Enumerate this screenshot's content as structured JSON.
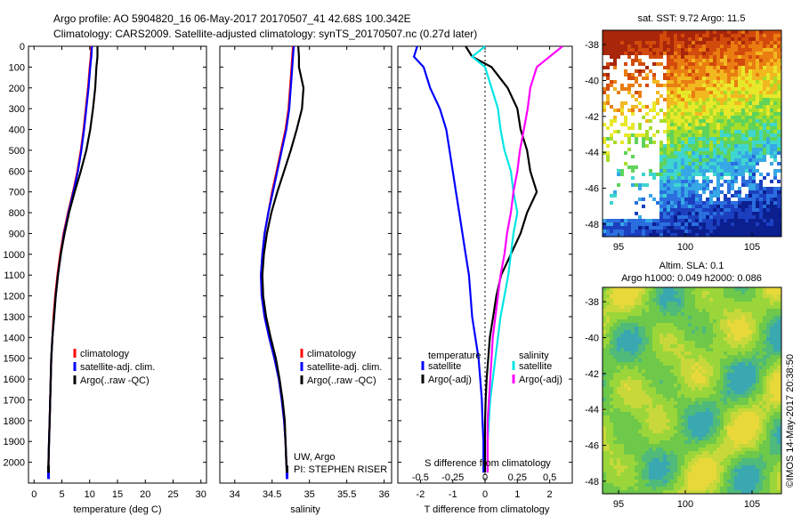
{
  "header": {
    "title_line1": "Argo profile: AO 5904820_16 06-May-2017 20170507_41 42.68S 100.342E",
    "title_line2": "Climatology: CARS2009. Satellite-adjusted climatology: synTS_20170507.nc (0.27d later)"
  },
  "side_text": "©IMOS 14-May-2017 20:38:50",
  "colors": {
    "climatology": "#ff0000",
    "satellite": "#0000ff",
    "argo": "#000000",
    "sal_satellite": "#00e5e5",
    "sal_argo": "#ff00ff"
  },
  "chart_data": [
    {
      "type": "line",
      "id": "temperature-profile",
      "xlabel": "temperature (deg C)",
      "xlim": [
        -1,
        31
      ],
      "xticks": [
        "0",
        "5",
        "10",
        "15",
        "20",
        "25",
        "30"
      ],
      "ylim": [
        2100,
        0
      ],
      "yticks": [
        "0",
        "100",
        "200",
        "300",
        "400",
        "500",
        "600",
        "700",
        "800",
        "900",
        "1000",
        "1100",
        "1200",
        "1300",
        "1400",
        "1500",
        "1600",
        "1700",
        "1800",
        "1900",
        "2000"
      ],
      "series": [
        {
          "name": "climatology",
          "color": "#ff0000",
          "x": [
            10.3,
            10.2,
            10.0,
            9.7,
            9.3,
            8.9,
            8.4,
            7.8,
            7.0,
            6.1,
            5.3,
            4.7,
            4.2,
            3.8,
            3.5,
            3.3,
            3.1,
            3.0,
            2.9,
            2.8,
            2.7,
            2.6,
            2.6,
            2.6
          ],
          "y": [
            0,
            50,
            100,
            200,
            300,
            400,
            500,
            600,
            700,
            800,
            900,
            1000,
            1100,
            1200,
            1300,
            1400,
            1500,
            1600,
            1700,
            1800,
            1900,
            2000,
            2050,
            2080
          ]
        },
        {
          "name": "satellite-adj. clim.",
          "color": "#0000ff",
          "x": [
            10.4,
            10.3,
            10.1,
            9.8,
            9.4,
            9.0,
            8.5,
            7.9,
            7.1,
            6.2,
            5.4,
            4.8,
            4.3,
            3.9,
            3.6,
            3.3,
            3.1,
            3.0,
            2.9,
            2.8,
            2.7,
            2.6,
            2.6,
            2.6
          ],
          "y": [
            0,
            50,
            100,
            200,
            300,
            400,
            500,
            600,
            700,
            800,
            900,
            1000,
            1100,
            1200,
            1300,
            1400,
            1500,
            1600,
            1700,
            1800,
            1900,
            2000,
            2050,
            2080
          ]
        },
        {
          "name": "Argo(..raw -QC)",
          "color": "#000000",
          "x": [
            11.4,
            11.4,
            11.2,
            11.0,
            10.6,
            10.1,
            9.4,
            8.4,
            7.3,
            6.3,
            5.5,
            4.8,
            4.3,
            3.9,
            3.6,
            3.3,
            3.1,
            3.0,
            2.9,
            2.8,
            2.7,
            2.6,
            2.6
          ],
          "y": [
            0,
            50,
            100,
            200,
            300,
            400,
            500,
            600,
            700,
            800,
            900,
            1000,
            1100,
            1200,
            1300,
            1400,
            1500,
            1600,
            1700,
            1800,
            1900,
            2000,
            2050
          ]
        }
      ],
      "legend": [
        "climatology",
        "satellite-adj. clim.",
        "Argo(..raw -QC)"
      ],
      "legend_position": "lower-right"
    },
    {
      "type": "line",
      "id": "salinity-profile",
      "xlabel": "salinity",
      "xlim": [
        33.8,
        36.1
      ],
      "xticks": [
        "34",
        "34.5",
        "35",
        "35.5",
        "36"
      ],
      "ylim": [
        2100,
        0
      ],
      "annotation_line1": "UW, Argo",
      "annotation_line2": "PI: STEPHEN RISER",
      "series": [
        {
          "name": "climatology",
          "color": "#ff0000",
          "x": [
            34.78,
            34.77,
            34.76,
            34.74,
            34.72,
            34.68,
            34.62,
            34.56,
            34.5,
            34.45,
            34.4,
            34.37,
            34.35,
            34.36,
            34.4,
            34.46,
            34.53,
            34.59,
            34.63,
            34.66,
            34.68,
            34.69,
            34.7
          ],
          "y": [
            0,
            50,
            100,
            200,
            300,
            400,
            500,
            600,
            700,
            800,
            900,
            1000,
            1100,
            1200,
            1300,
            1400,
            1500,
            1600,
            1700,
            1800,
            1900,
            2000,
            2080
          ]
        },
        {
          "name": "satellite-adj. clim.",
          "color": "#0000ff",
          "x": [
            34.79,
            34.78,
            34.77,
            34.75,
            34.73,
            34.69,
            34.63,
            34.57,
            34.51,
            34.45,
            34.4,
            34.37,
            34.35,
            34.36,
            34.4,
            34.46,
            34.53,
            34.59,
            34.63,
            34.66,
            34.68,
            34.69,
            34.7
          ],
          "y": [
            0,
            50,
            100,
            200,
            300,
            400,
            500,
            600,
            700,
            800,
            900,
            1000,
            1100,
            1200,
            1300,
            1400,
            1500,
            1600,
            1700,
            1800,
            1900,
            2000,
            2080
          ]
        },
        {
          "name": "Argo(..raw -QC)",
          "color": "#000000",
          "x": [
            34.85,
            34.86,
            34.86,
            34.92,
            34.9,
            34.83,
            34.75,
            34.66,
            34.57,
            34.49,
            34.43,
            34.39,
            34.37,
            34.38,
            34.42,
            34.48,
            34.55,
            34.6,
            34.64,
            34.67,
            34.68,
            34.69,
            34.7
          ],
          "y": [
            0,
            50,
            100,
            200,
            300,
            400,
            500,
            600,
            700,
            800,
            900,
            1000,
            1100,
            1200,
            1300,
            1400,
            1500,
            1600,
            1700,
            1800,
            1900,
            2000,
            2050
          ]
        }
      ],
      "legend": [
        "climatology",
        "satellite-adj. clim.",
        "Argo(..raw -QC)"
      ],
      "legend_position": "lower-right"
    },
    {
      "type": "line",
      "id": "difference-profile",
      "xlabel": "T difference from climatology",
      "xlabel_top": "S difference from climatology",
      "xlim": [
        -2.7,
        2.7
      ],
      "xticks": [
        "-2",
        "-1",
        "0",
        "1",
        "2"
      ],
      "xticks_top": [
        "-0.5",
        "-0.25",
        "0",
        "0.25",
        "0.5"
      ],
      "ylim": [
        2100,
        0
      ],
      "legend_title_left": "temperature",
      "legend_title_right": "salinity",
      "series": [
        {
          "name": "satellite",
          "group": "temperature",
          "color": "#0000ff",
          "x": [
            -2.1,
            -2.2,
            -1.9,
            -1.7,
            -1.4,
            -1.2,
            -1.1,
            -1.0,
            -0.9,
            -0.8,
            -0.7,
            -0.6,
            -0.5,
            -0.45,
            -0.4,
            -0.3,
            -0.2,
            -0.15,
            -0.1,
            -0.08,
            -0.05,
            -0.05
          ],
          "y": [
            0,
            50,
            100,
            200,
            300,
            400,
            500,
            600,
            700,
            800,
            900,
            1000,
            1100,
            1200,
            1300,
            1400,
            1500,
            1600,
            1700,
            1800,
            1900,
            2050
          ]
        },
        {
          "name": "Argo(-adj)",
          "group": "temperature",
          "color": "#000000",
          "x": [
            -0.6,
            -0.4,
            0.2,
            0.7,
            1.0,
            1.1,
            1.3,
            1.4,
            1.6,
            1.3,
            1.1,
            0.8,
            0.5,
            0.35,
            0.25,
            0.15,
            0.1,
            0.05,
            0.02,
            0.0,
            0.0,
            0.0
          ],
          "y": [
            0,
            50,
            100,
            200,
            300,
            400,
            500,
            600,
            700,
            800,
            900,
            1000,
            1100,
            1200,
            1300,
            1400,
            1500,
            1600,
            1700,
            1800,
            1900,
            2050
          ]
        },
        {
          "name": "satellite",
          "group": "salinity",
          "color": "#00e5e5",
          "x": [
            0.0,
            -0.1,
            0.0,
            0.05,
            0.1,
            0.12,
            0.15,
            0.2,
            0.22,
            0.25,
            0.22,
            0.2,
            0.18,
            0.15,
            0.12,
            0.1,
            0.08,
            0.06,
            0.04,
            0.03,
            0.02,
            0.02
          ],
          "y": [
            0,
            50,
            100,
            200,
            300,
            400,
            500,
            600,
            700,
            800,
            900,
            1000,
            1100,
            1200,
            1300,
            1400,
            1500,
            1600,
            1700,
            1800,
            1900,
            2050
          ]
        },
        {
          "name": "Argo(-adj)",
          "group": "salinity",
          "color": "#ff00ff",
          "x": [
            0.6,
            0.5,
            0.4,
            0.35,
            0.33,
            0.3,
            0.27,
            0.25,
            0.22,
            0.2,
            0.17,
            0.15,
            0.12,
            0.1,
            0.08,
            0.06,
            0.05,
            0.04,
            0.03,
            0.02,
            0.02,
            0.02
          ],
          "y": [
            0,
            50,
            100,
            200,
            300,
            400,
            500,
            600,
            700,
            800,
            900,
            1000,
            1100,
            1200,
            1300,
            1400,
            1500,
            1600,
            1700,
            1800,
            1900,
            2050
          ]
        }
      ]
    },
    {
      "type": "heatmap",
      "id": "sst-map",
      "title": "sat. SST: 9.72  Argo: 11.5",
      "xticks": [
        "95",
        "100",
        "105"
      ],
      "yticks": [
        "-38",
        "-40",
        "-42",
        "-44",
        "-46",
        "-48"
      ],
      "xlim": [
        93.8,
        107.2
      ],
      "ylim": [
        -48.7,
        -37.2
      ]
    },
    {
      "type": "heatmap",
      "id": "sla-map",
      "title_line1": "Altim. SLA: 0.1",
      "title_line2": "Argo h1000: 0.049 h2000: 0.086",
      "xticks": [
        "95",
        "100",
        "105"
      ],
      "yticks": [
        "-38",
        "-40",
        "-42",
        "-44",
        "-46",
        "-48"
      ],
      "xlim": [
        93.8,
        107.2
      ],
      "ylim": [
        -48.7,
        -37.2
      ]
    }
  ]
}
